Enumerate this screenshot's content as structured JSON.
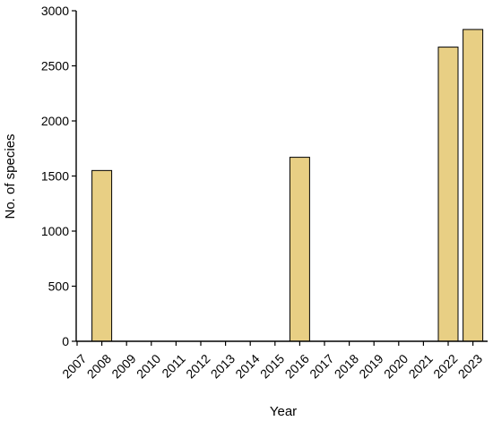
{
  "chart_data": {
    "type": "bar",
    "categories": [
      "2007",
      "2008",
      "2009",
      "2010",
      "2011",
      "2012",
      "2013",
      "2014",
      "2015",
      "2016",
      "2017",
      "2018",
      "2019",
      "2020",
      "2021",
      "2022",
      "2023"
    ],
    "values": [
      0,
      1550,
      0,
      0,
      0,
      0,
      0,
      0,
      0,
      1670,
      0,
      0,
      0,
      0,
      0,
      2670,
      2830
    ],
    "title": "",
    "xlabel": "Year",
    "ylabel": "No. of species",
    "ylim": [
      0,
      3000
    ],
    "yticks": [
      0,
      500,
      1000,
      1500,
      2000,
      2500,
      3000
    ],
    "grid": false,
    "bar_color": "#e8cf84"
  }
}
